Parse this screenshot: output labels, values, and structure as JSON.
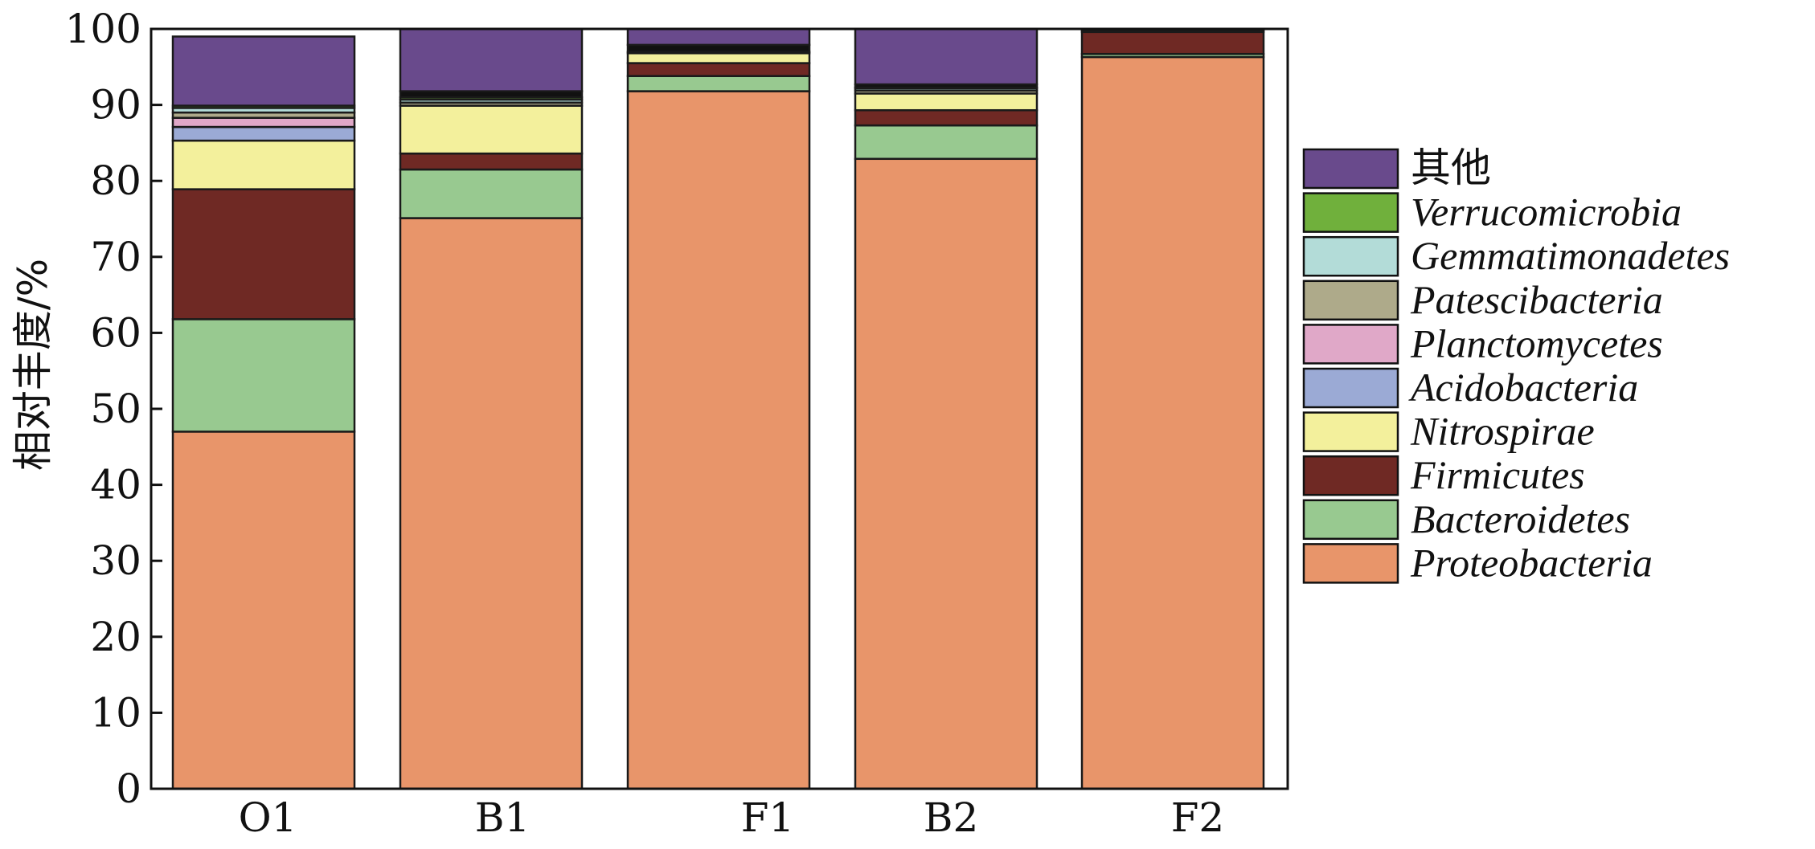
{
  "chart_data": {
    "type": "bar",
    "stacked": true,
    "title": "",
    "xlabel": "",
    "ylabel": "相对丰度/%",
    "ylim": [
      0,
      100
    ],
    "yticks": [
      0,
      10,
      20,
      30,
      40,
      50,
      60,
      70,
      80,
      90,
      100
    ],
    "categories": [
      "O1",
      "B1",
      "F1",
      "B2",
      "F2"
    ],
    "legend_position": "right",
    "series": [
      {
        "name": "Proteobacteria",
        "color": "#E8956A",
        "italic": true,
        "values": [
          47.0,
          75.1,
          91.8,
          82.9,
          96.3
        ]
      },
      {
        "name": "Bacteroidetes",
        "color": "#98C990",
        "italic": true,
        "values": [
          14.8,
          6.4,
          2.0,
          4.4,
          0.4
        ]
      },
      {
        "name": "Firmicutes",
        "color": "#6F2924",
        "italic": true,
        "values": [
          17.1,
          2.1,
          1.7,
          2.0,
          2.9
        ]
      },
      {
        "name": "Nitrospirae",
        "color": "#F3F09C",
        "italic": true,
        "values": [
          6.4,
          6.3,
          1.3,
          2.2,
          0.0
        ]
      },
      {
        "name": "Acidobacteria",
        "color": "#9BAAD5",
        "italic": true,
        "values": [
          1.8,
          0.0,
          0.0,
          0.0,
          0.0
        ]
      },
      {
        "name": "Planctomycetes",
        "color": "#E0A8C8",
        "italic": true,
        "values": [
          1.2,
          0.0,
          0.0,
          0.0,
          0.0
        ]
      },
      {
        "name": "Patescibacteria",
        "color": "#AEAA8A",
        "italic": true,
        "values": [
          0.7,
          0.4,
          0.0,
          0.4,
          0.2
        ]
      },
      {
        "name": "Gemmatimonadetes",
        "color": "#B3DCD8",
        "italic": true,
        "values": [
          0.6,
          0.4,
          0.2,
          0.3,
          0.0
        ]
      },
      {
        "name": "Verrucomicrobia",
        "color": "#70B03C",
        "italic": true,
        "values": [
          0.3,
          0.3,
          0.0,
          0.1,
          0.0
        ]
      },
      {
        "name": "其他",
        "color": "#694A8C",
        "italic": false,
        "values": [
          9.1,
          8.2,
          2.1,
          7.3,
          0.2
        ]
      }
    ],
    "extra_segments_note": "F1 and B1 include a thin black band (~1%) under 其他",
    "extra_black_band": {
      "color": "#111111",
      "values": [
        0.0,
        0.8,
        0.9,
        0.4,
        0.0
      ]
    }
  }
}
